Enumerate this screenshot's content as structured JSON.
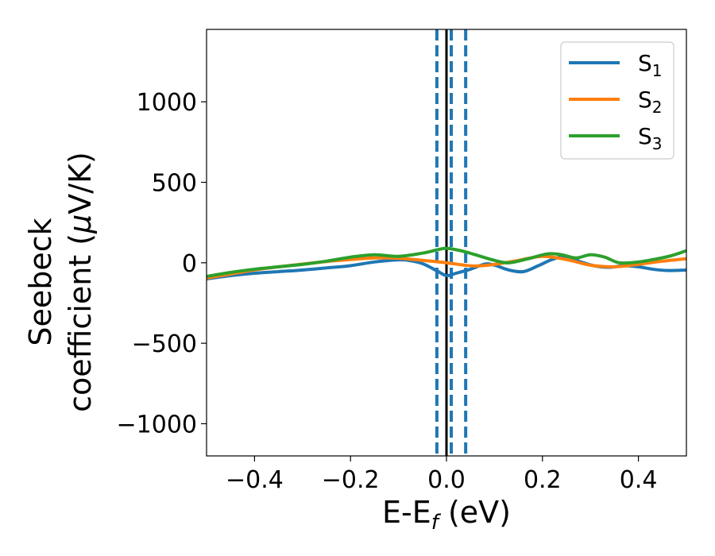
{
  "chart_data": {
    "type": "line",
    "title": "",
    "xlabel": "E-E",
    "xlabel_sub": "f",
    "xlabel_unit": " (eV)",
    "ylabel_line1": "Seebeck",
    "ylabel_line2": "coefficient  (",
    "ylabel_mu": "μ",
    "ylabel_unit": "V/K)",
    "xlim": [
      -0.5,
      0.5
    ],
    "ylim": [
      -1200,
      1450
    ],
    "xticks": [
      -0.4,
      -0.2,
      0.0,
      0.2,
      0.4
    ],
    "xtick_labels": [
      "−0.4",
      "−0.2",
      "0.0",
      "0.2",
      "0.4"
    ],
    "yticks": [
      -1000,
      -500,
      0,
      500,
      1000
    ],
    "ytick_labels": [
      "−1000",
      "−500",
      "0",
      "500",
      "1000"
    ],
    "grid": false,
    "legend_position": "top-right",
    "vlines": [
      {
        "x": 0.0,
        "style": "solid",
        "color": "#000000"
      },
      {
        "x": -0.02,
        "style": "dashed",
        "color": "#1f77b4"
      },
      {
        "x": 0.01,
        "style": "dashed",
        "color": "#1f77b4"
      },
      {
        "x": 0.04,
        "style": "dashed",
        "color": "#1f77b4"
      }
    ],
    "series": [
      {
        "name": "S",
        "sub": "1",
        "color": "#1f77b4",
        "x": [
          -0.5,
          -0.45,
          -0.4,
          -0.35,
          -0.3,
          -0.25,
          -0.2,
          -0.15,
          -0.1,
          -0.08,
          -0.05,
          -0.02,
          0.0,
          0.02,
          0.05,
          0.08,
          0.1,
          0.13,
          0.16,
          0.19,
          0.22,
          0.25,
          0.28,
          0.31,
          0.34,
          0.37,
          0.4,
          0.43,
          0.46,
          0.5
        ],
        "y": [
          -100,
          -80,
          -65,
          -55,
          -45,
          -32,
          -18,
          5,
          18,
          15,
          -5,
          -50,
          -80,
          -65,
          -40,
          -8,
          -15,
          -45,
          -55,
          -20,
          20,
          40,
          5,
          -20,
          -28,
          -18,
          -25,
          -40,
          -48,
          -45
        ]
      },
      {
        "name": "S",
        "sub": "2",
        "color": "#ff7f0e",
        "x": [
          -0.5,
          -0.45,
          -0.4,
          -0.35,
          -0.3,
          -0.25,
          -0.2,
          -0.15,
          -0.1,
          -0.05,
          0.0,
          0.03,
          0.06,
          0.1,
          0.15,
          0.2,
          0.25,
          0.3,
          0.35,
          0.4,
          0.45,
          0.5
        ],
        "y": [
          -95,
          -70,
          -45,
          -25,
          -8,
          8,
          20,
          30,
          28,
          15,
          0,
          -12,
          -20,
          -10,
          15,
          40,
          20,
          -15,
          -25,
          -10,
          10,
          25
        ]
      },
      {
        "name": "S",
        "sub": "3",
        "color": "#2ca02c",
        "x": [
          -0.5,
          -0.45,
          -0.4,
          -0.35,
          -0.3,
          -0.25,
          -0.2,
          -0.15,
          -0.1,
          -0.05,
          -0.02,
          0.0,
          0.03,
          0.06,
          0.1,
          0.13,
          0.17,
          0.21,
          0.24,
          0.27,
          0.3,
          0.33,
          0.36,
          0.4,
          0.44,
          0.47,
          0.5
        ],
        "y": [
          -85,
          -60,
          -40,
          -25,
          -10,
          10,
          35,
          50,
          40,
          60,
          80,
          90,
          75,
          50,
          15,
          0,
          25,
          55,
          50,
          30,
          50,
          35,
          0,
          5,
          25,
          45,
          75
        ]
      }
    ]
  }
}
